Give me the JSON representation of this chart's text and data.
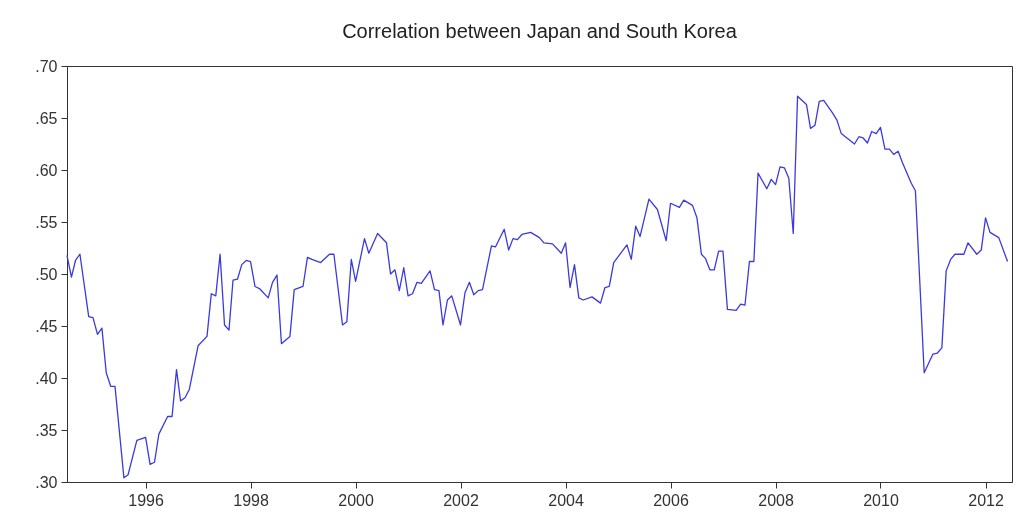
{
  "chart_data": {
    "type": "line",
    "title": "Correlation between Japan and South Korea",
    "x": [
      "1995-01",
      "1995-02",
      "1995-03",
      "1995-04",
      "1995-06",
      "1995-07",
      "1995-08",
      "1995-09",
      "1995-10",
      "1995-11",
      "1995-12",
      "1996-02",
      "1996-03",
      "1996-05",
      "1996-07",
      "1996-08",
      "1996-09",
      "1996-10",
      "1996-12",
      "1997-01",
      "1997-02",
      "1997-03",
      "1997-04",
      "1997-05",
      "1997-07",
      "1997-09",
      "1997-10",
      "1997-11",
      "1997-12",
      "1998-01",
      "1998-02",
      "1998-03",
      "1998-04",
      "1998-05",
      "1998-06",
      "1998-07",
      "1998-08",
      "1998-09",
      "1998-11",
      "1998-12",
      "1999-01",
      "1999-02",
      "1999-04",
      "1999-05",
      "1999-07",
      "1999-08",
      "1999-09",
      "1999-11",
      "2000-01",
      "2000-02",
      "2000-04",
      "2000-05",
      "2000-06",
      "2000-07",
      "2000-09",
      "2000-10",
      "2000-12",
      "2001-02",
      "2001-03",
      "2001-04",
      "2001-05",
      "2001-06",
      "2001-07",
      "2001-08",
      "2001-09",
      "2001-10",
      "2001-12",
      "2002-01",
      "2002-02",
      "2002-03",
      "2002-04",
      "2002-05",
      "2002-07",
      "2002-08",
      "2002-09",
      "2002-10",
      "2002-11",
      "2002-12",
      "2003-02",
      "2003-03",
      "2003-05",
      "2003-06",
      "2003-07",
      "2003-08",
      "2003-09",
      "2003-11",
      "2004-01",
      "2004-02",
      "2004-04",
      "2004-06",
      "2004-07",
      "2004-08",
      "2004-09",
      "2004-10",
      "2004-11",
      "2005-01",
      "2005-03",
      "2005-04",
      "2005-05",
      "2005-06",
      "2005-09",
      "2005-10",
      "2005-11",
      "2005-12",
      "2006-02",
      "2006-04",
      "2006-06",
      "2006-07",
      "2006-09",
      "2006-10",
      "2006-12",
      "2007-01",
      "2007-02",
      "2007-03",
      "2007-04",
      "2007-05",
      "2007-06",
      "2007-07",
      "2007-08",
      "2007-10",
      "2007-11",
      "2007-12",
      "2008-01",
      "2008-02",
      "2008-03",
      "2008-05",
      "2008-06",
      "2008-07",
      "2008-08",
      "2008-09",
      "2008-10",
      "2008-11",
      "2008-12",
      "2009-02",
      "2009-03",
      "2009-04",
      "2009-05",
      "2009-06",
      "2009-08",
      "2009-09",
      "2009-10",
      "2010-01",
      "2010-02",
      "2010-03",
      "2010-04",
      "2010-05",
      "2010-06",
      "2010-07",
      "2010-08",
      "2010-09",
      "2010-10",
      "2010-11",
      "2010-12",
      "2011-02",
      "2011-03",
      "2011-05",
      "2011-07",
      "2011-08",
      "2011-09",
      "2011-10",
      "2011-11",
      "2011-12",
      "2012-02",
      "2012-03",
      "2012-05",
      "2012-06",
      "2012-07",
      "2012-08",
      "2012-10",
      "2012-12"
    ],
    "series": [
      {
        "color": "#3a3ae0",
        "values": [
          0.518,
          0.497,
          0.513,
          0.519,
          0.459,
          0.458,
          0.442,
          0.448,
          0.405,
          0.392,
          0.392,
          0.304,
          0.307,
          0.34,
          0.343,
          0.317,
          0.319,
          0.346,
          0.363,
          0.363,
          0.408,
          0.378,
          0.381,
          0.389,
          0.431,
          0.44,
          0.481,
          0.479,
          0.519,
          0.451,
          0.446,
          0.494,
          0.495,
          0.509,
          0.513,
          0.512,
          0.488,
          0.486,
          0.477,
          0.492,
          0.499,
          0.433,
          0.44,
          0.485,
          0.488,
          0.516,
          0.514,
          0.511,
          0.519,
          0.519,
          0.451,
          0.454,
          0.514,
          0.493,
          0.534,
          0.52,
          0.539,
          0.53,
          0.5,
          0.504,
          0.484,
          0.506,
          0.479,
          0.481,
          0.492,
          0.491,
          0.503,
          0.485,
          0.484,
          0.451,
          0.475,
          0.479,
          0.451,
          0.482,
          0.492,
          0.48,
          0.484,
          0.485,
          0.527,
          0.526,
          0.543,
          0.523,
          0.534,
          0.533,
          0.538,
          0.54,
          0.535,
          0.53,
          0.529,
          0.52,
          0.53,
          0.487,
          0.509,
          0.477,
          0.475,
          0.478,
          0.472,
          0.487,
          0.488,
          0.511,
          0.528,
          0.514,
          0.546,
          0.536,
          0.572,
          0.562,
          0.532,
          0.568,
          0.564,
          0.571,
          0.566,
          0.554,
          0.519,
          0.515,
          0.504,
          0.504,
          0.522,
          0.522,
          0.466,
          0.465,
          0.471,
          0.47,
          0.512,
          0.512,
          0.597,
          0.582,
          0.591,
          0.586,
          0.603,
          0.602,
          0.592,
          0.539,
          0.671,
          0.663,
          0.64,
          0.643,
          0.666,
          0.667,
          0.655,
          0.648,
          0.635,
          0.625,
          0.632,
          0.631,
          0.626,
          0.637,
          0.635,
          0.641,
          0.62,
          0.62,
          0.615,
          0.618,
          0.607,
          0.587,
          0.58,
          0.405,
          0.423,
          0.424,
          0.429,
          0.503,
          0.514,
          0.519,
          0.519,
          0.53,
          0.519,
          0.523,
          0.554,
          0.54,
          0.535,
          0.512
        ]
      }
    ],
    "xlim": [
      "1995-01",
      "2013-01"
    ],
    "xticks": [
      {
        "value": "1996-07",
        "label": "1996"
      },
      {
        "value": "1998-07",
        "label": "1998"
      },
      {
        "value": "2000-07",
        "label": "2000"
      },
      {
        "value": "2002-07",
        "label": "2002"
      },
      {
        "value": "2004-07",
        "label": "2004"
      },
      {
        "value": "2006-07",
        "label": "2006"
      },
      {
        "value": "2008-07",
        "label": "2008"
      },
      {
        "value": "2010-07",
        "label": "2010"
      },
      {
        "value": "2012-07",
        "label": "2012"
      }
    ],
    "ylim": [
      0.3,
      0.7
    ],
    "yticks": [
      {
        "value": 0.3,
        "label": ".30"
      },
      {
        "value": 0.35,
        "label": ".35"
      },
      {
        "value": 0.4,
        "label": ".40"
      },
      {
        "value": 0.45,
        "label": ".45"
      },
      {
        "value": 0.5,
        "label": ".50"
      },
      {
        "value": 0.55,
        "label": ".55"
      },
      {
        "value": 0.6,
        "label": ".60"
      },
      {
        "value": 0.65,
        "label": ".65"
      },
      {
        "value": 0.7,
        "label": ".70"
      }
    ],
    "grid": false
  }
}
